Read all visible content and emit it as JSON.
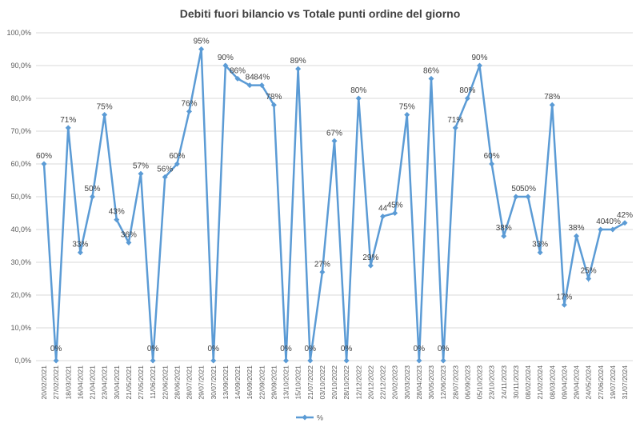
{
  "chart_data": {
    "type": "line",
    "title": "Debiti fuori bilancio vs Totale punti ordine del giorno",
    "categories": [
      "20/02/2021",
      "27/02/2021",
      "18/03/2021",
      "16/04/2021",
      "21/04/2021",
      "23/04/2021",
      "30/04/2021",
      "21/05/2021",
      "27/05/2021",
      "11/06/2021",
      "22/06/2021",
      "28/06/2021",
      "28/07/2021",
      "29/07/2021",
      "30/07/2021",
      "13/09/2021",
      "14/09/2021",
      "16/09/2021",
      "22/09/2021",
      "29/09/2021",
      "13/10/2021",
      "15/10/2021",
      "21/07/2022",
      "03/10/2022",
      "20/10/2022",
      "28/10/2022",
      "12/12/2022",
      "20/12/2022",
      "22/12/2022",
      "20/02/2023",
      "30/03/2023",
      "28/04/2023",
      "30/05/2023",
      "12/06/2023",
      "28/07/2023",
      "06/09/2023",
      "05/10/2023",
      "23/10/2023",
      "24/11/2023",
      "30/11/2023",
      "08/02/2024",
      "21/02/2024",
      "08/03/2024",
      "09/04/2024",
      "29/04/2024",
      "24/05/2024",
      "27/06/2024",
      "19/07/2024",
      "31/07/2024"
    ],
    "series": [
      {
        "name": "%",
        "color": "#5b9bd5",
        "values": [
          60,
          0,
          71,
          33,
          50,
          75,
          43,
          36,
          57,
          0,
          56,
          60,
          76,
          95,
          0,
          90,
          86,
          84,
          84,
          78,
          0,
          89,
          0,
          27,
          67,
          0,
          80,
          29,
          44,
          45,
          75,
          0,
          86,
          0,
          71,
          80,
          90,
          60,
          38,
          50,
          50,
          33,
          78,
          17,
          38,
          25,
          40,
          40,
          42
        ],
        "value_labels": [
          "60%",
          "0%",
          "71%",
          "33%",
          "50%",
          "75%",
          "43%",
          "36%",
          "57%",
          "0%",
          "56%",
          "60%",
          "76%",
          "95%",
          "0%",
          "90%",
          "86%",
          "84",
          "84%",
          "78%",
          "0%",
          "89%",
          "0%",
          "27%",
          "67%",
          "0%",
          "80%",
          "29%",
          "44",
          "45%",
          "75%",
          "0%",
          "86%",
          "0%",
          "71%",
          "80%",
          "90%",
          "60%",
          "38%",
          "50",
          "50%",
          "33%",
          "78%",
          "17%",
          "38%",
          "25%",
          "40",
          "40%",
          "42%"
        ]
      }
    ],
    "ylim": [
      0,
      100
    ],
    "yticks": [
      {
        "value": 0,
        "label": "0,0%"
      },
      {
        "value": 10,
        "label": "10,0%"
      },
      {
        "value": 20,
        "label": "20,0%"
      },
      {
        "value": 30,
        "label": "30,0%"
      },
      {
        "value": 40,
        "label": "40,0%"
      },
      {
        "value": 50,
        "label": "50,0%"
      },
      {
        "value": 60,
        "label": "60,0%"
      },
      {
        "value": 70,
        "label": "70,0%"
      },
      {
        "value": 80,
        "label": "80,0%"
      },
      {
        "value": 90,
        "label": "90,0%"
      },
      {
        "value": 100,
        "label": "100,0%"
      }
    ],
    "grid": true,
    "legend": "bottom"
  }
}
